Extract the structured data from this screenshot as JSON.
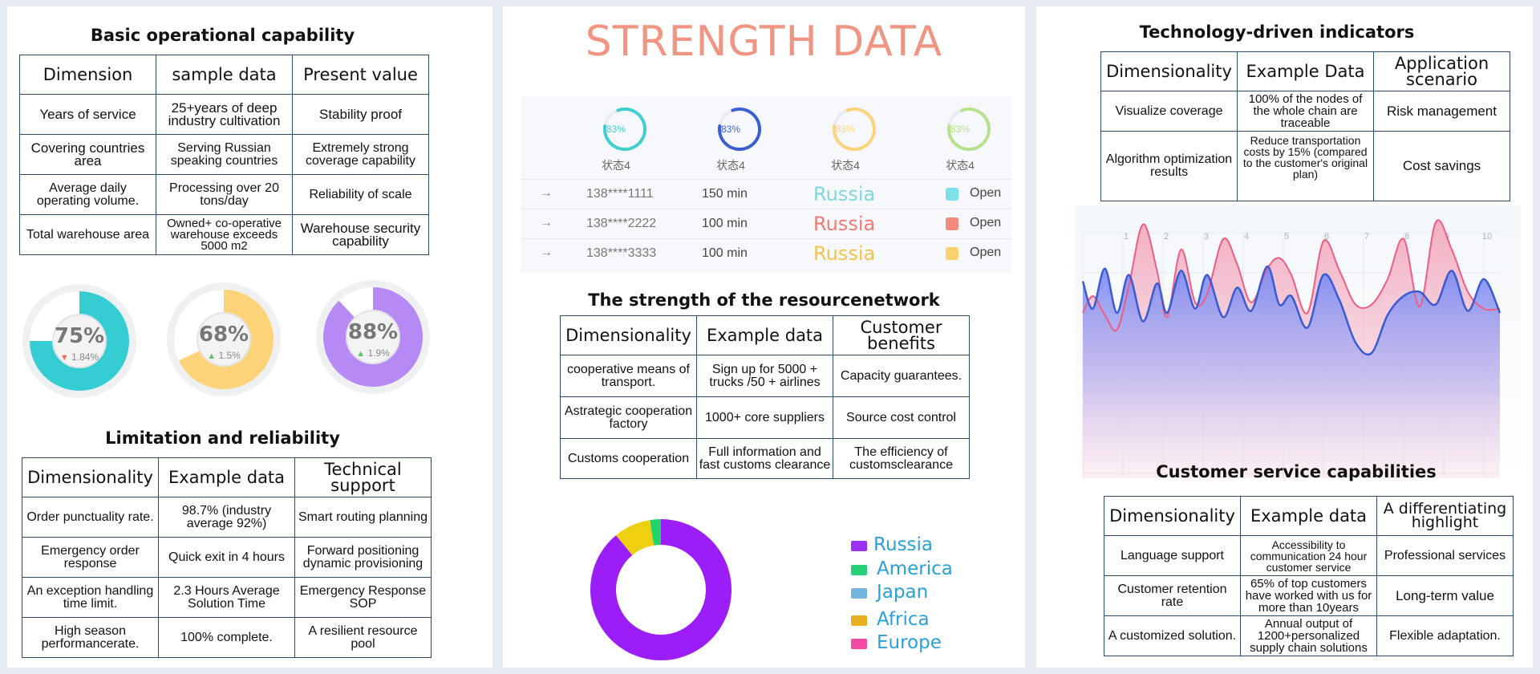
{
  "left": {
    "basic": {
      "title": "Basic operational capability",
      "headers": [
        "Dimension",
        "sample data",
        "Present value"
      ],
      "rows": [
        [
          "Years of service",
          "25+years of deep industry cultivation",
          "Stability proof"
        ],
        [
          "Covering countries area",
          "Serving Russian speaking countries",
          "Extremely strong coverage capability"
        ],
        [
          "Average daily operating volume.",
          "Processing over 20 tons/day",
          "Reliability of scale"
        ],
        [
          "Total warehouse area",
          "Owned+ co-operative warehouse exceeds 5000 m2",
          "Warehouse security capability"
        ]
      ]
    },
    "gauges": [
      {
        "value": "75%",
        "delta": "1.84%",
        "direction": "down",
        "fraction": 0.75,
        "color": "#35cdd4"
      },
      {
        "value": "68%",
        "delta": "1.5%",
        "direction": "up",
        "fraction": 0.68,
        "color": "#fdd37a"
      },
      {
        "value": "88%",
        "delta": "1.9%",
        "direction": "up",
        "fraction": 0.88,
        "color": "#b58af4"
      }
    ],
    "limitation": {
      "title": "Limitation and reliability",
      "headers": [
        "Dimensionality",
        "Example data",
        "Technical support"
      ],
      "rows": [
        [
          "Order punctuality rate.",
          "98.7% (industry average 92%)",
          "Smart routing planning"
        ],
        [
          "Emergency order response",
          "Quick exit in 4 hours",
          "Forward positioning dynamic provisioning"
        ],
        [
          "An exception handling time limit.",
          "2.3 Hours Average Solution Time",
          "Emergency Response SOP"
        ],
        [
          "High season performancerate.",
          "100% complete.",
          "A resilient resource pool"
        ]
      ]
    }
  },
  "mid": {
    "title": "STRENGTH DATA",
    "rings": [
      {
        "pct": "83%",
        "label": "状态4",
        "fraction": 0.83,
        "color": "#3fcfcf",
        "text_color": "#3fcfcf"
      },
      {
        "pct": "83%",
        "label": "状态4",
        "fraction": 0.83,
        "color": "#3a5fd0",
        "text_color": "#3a5fd0"
      },
      {
        "pct": "83%",
        "label": "状态4",
        "fraction": 0.83,
        "color": "#fdd37a",
        "text_color": "#fdd37a"
      },
      {
        "pct": "83%",
        "label": "状态4",
        "fraction": 0.83,
        "color": "#b7e08a",
        "text_color": "#b7e08a"
      }
    ],
    "status_rows": [
      {
        "arrow": "→",
        "phone": "138****1111",
        "time": "150 min",
        "country": "Russia",
        "country_color": "#7fd7dc",
        "dot_color": "#7ee0e4",
        "status": "Open"
      },
      {
        "arrow": "→",
        "phone": "138****2222",
        "time": "100 min",
        "country": "Russia",
        "country_color": "#f07b72",
        "dot_color": "#f48a7c",
        "status": "Open"
      },
      {
        "arrow": "→",
        "phone": "138****3333",
        "time": "100 min",
        "country": "Russia",
        "country_color": "#f5c24d",
        "dot_color": "#f9d26e",
        "status": "Open"
      }
    ],
    "resource": {
      "title": "The strength of the resourcenetwork",
      "headers": [
        "Dimensionality",
        "Example data",
        "Customer benefits"
      ],
      "rows": [
        [
          "cooperative means of transport.",
          "Sign up for 5000 + trucks /50 + airlines",
          "Capacity guarantees."
        ],
        [
          "Astrategic cooperation factory",
          "1000+ core suppliers",
          "Source cost control"
        ],
        [
          "Customs cooperation",
          "Full information and fast customs clearance",
          "The efficiency of customsclearance"
        ]
      ]
    },
    "donut_legend": [
      {
        "name": "Russia",
        "color": "#9b30f5"
      },
      {
        "name": "America",
        "color": "#27d07a"
      },
      {
        "name": "Japan",
        "color": "#74b3e0"
      },
      {
        "name": "Africa",
        "color": "#e8b020"
      },
      {
        "name": "Europe",
        "color": "#f04aa5"
      }
    ],
    "chart_data": {
      "type": "pie",
      "categories": [
        "Russia",
        "America",
        "Japan",
        "Africa",
        "Europe"
      ],
      "values": [
        89,
        2.5,
        0,
        8.5,
        0
      ],
      "colors": [
        "#9b1ef8",
        "#1ed46b",
        "#74b3e0",
        "#efd00f",
        "#f04aa5"
      ],
      "title": "",
      "legend": "right"
    }
  },
  "right": {
    "tech": {
      "title": "Technology-driven indicators",
      "headers": [
        "Dimensionality",
        "Example Data",
        "Application scenario"
      ],
      "rows": [
        [
          "Visualize coverage",
          "100% of the nodes of the whole chain are traceable",
          "Risk management"
        ],
        [
          "Algorithm optimization results",
          "Reduce transportation costs by 15% (compared to the customer's original plan)",
          "Cost savings"
        ]
      ]
    },
    "wave": {
      "type": "area",
      "x": [
        1,
        2,
        3,
        4,
        5,
        6,
        7,
        8,
        9,
        10
      ],
      "ylim": [
        0,
        100
      ],
      "blue_color": "#3b5bd3",
      "pink_color": "#ef5d84",
      "blue": [
        [
          0.0,
          77
        ],
        [
          0.25,
          64
        ],
        [
          0.55,
          83
        ],
        [
          0.85,
          62
        ],
        [
          1.15,
          80
        ],
        [
          1.5,
          58
        ],
        [
          1.85,
          76
        ],
        [
          2.1,
          62
        ],
        [
          2.45,
          82
        ],
        [
          2.8,
          64
        ],
        [
          3.1,
          80
        ],
        [
          3.5,
          60
        ],
        [
          3.85,
          74
        ],
        [
          4.2,
          63
        ],
        [
          4.6,
          84
        ],
        [
          4.9,
          66
        ],
        [
          5.2,
          70
        ],
        [
          5.6,
          55
        ],
        [
          6.0,
          80
        ],
        [
          6.4,
          68
        ],
        [
          6.8,
          48
        ],
        [
          7.2,
          43
        ],
        [
          7.6,
          61
        ],
        [
          8.0,
          70
        ],
        [
          8.4,
          72
        ],
        [
          8.8,
          66
        ],
        [
          9.2,
          82
        ],
        [
          9.6,
          63
        ],
        [
          10.0,
          78
        ],
        [
          10.4,
          62
        ]
      ],
      "pink": [
        [
          0.0,
          62
        ],
        [
          0.25,
          70
        ],
        [
          0.55,
          61
        ],
        [
          0.85,
          54
        ],
        [
          1.15,
          75
        ],
        [
          1.5,
          104
        ],
        [
          1.85,
          82
        ],
        [
          2.1,
          60
        ],
        [
          2.45,
          92
        ],
        [
          2.8,
          67
        ],
        [
          3.1,
          71
        ],
        [
          3.5,
          97
        ],
        [
          3.85,
          85
        ],
        [
          4.2,
          67
        ],
        [
          4.6,
          83
        ],
        [
          4.9,
          88
        ],
        [
          5.2,
          80
        ],
        [
          5.6,
          62
        ],
        [
          6.0,
          96
        ],
        [
          6.4,
          82
        ],
        [
          6.8,
          66
        ],
        [
          7.2,
          66
        ],
        [
          7.6,
          78
        ],
        [
          8.0,
          97
        ],
        [
          8.4,
          65
        ],
        [
          8.8,
          105
        ],
        [
          9.2,
          92
        ],
        [
          9.6,
          72
        ],
        [
          10.0,
          64
        ],
        [
          10.4,
          64
        ]
      ]
    },
    "service": {
      "title": "Customer service capabilities",
      "headers": [
        "Dimensionality",
        "Example data",
        "A differentiating highlight"
      ],
      "rows": [
        [
          "Language support",
          "Accessibility to communication 24 hour customer service",
          "Professional services"
        ],
        [
          "Customer retention rate",
          "65% of top customers have worked with us for more than 10years",
          "Long-term value"
        ],
        [
          "A customized solution.",
          "Annual output of 1200+personalized supply chain solutions",
          "Flexible adaptation."
        ]
      ]
    }
  }
}
